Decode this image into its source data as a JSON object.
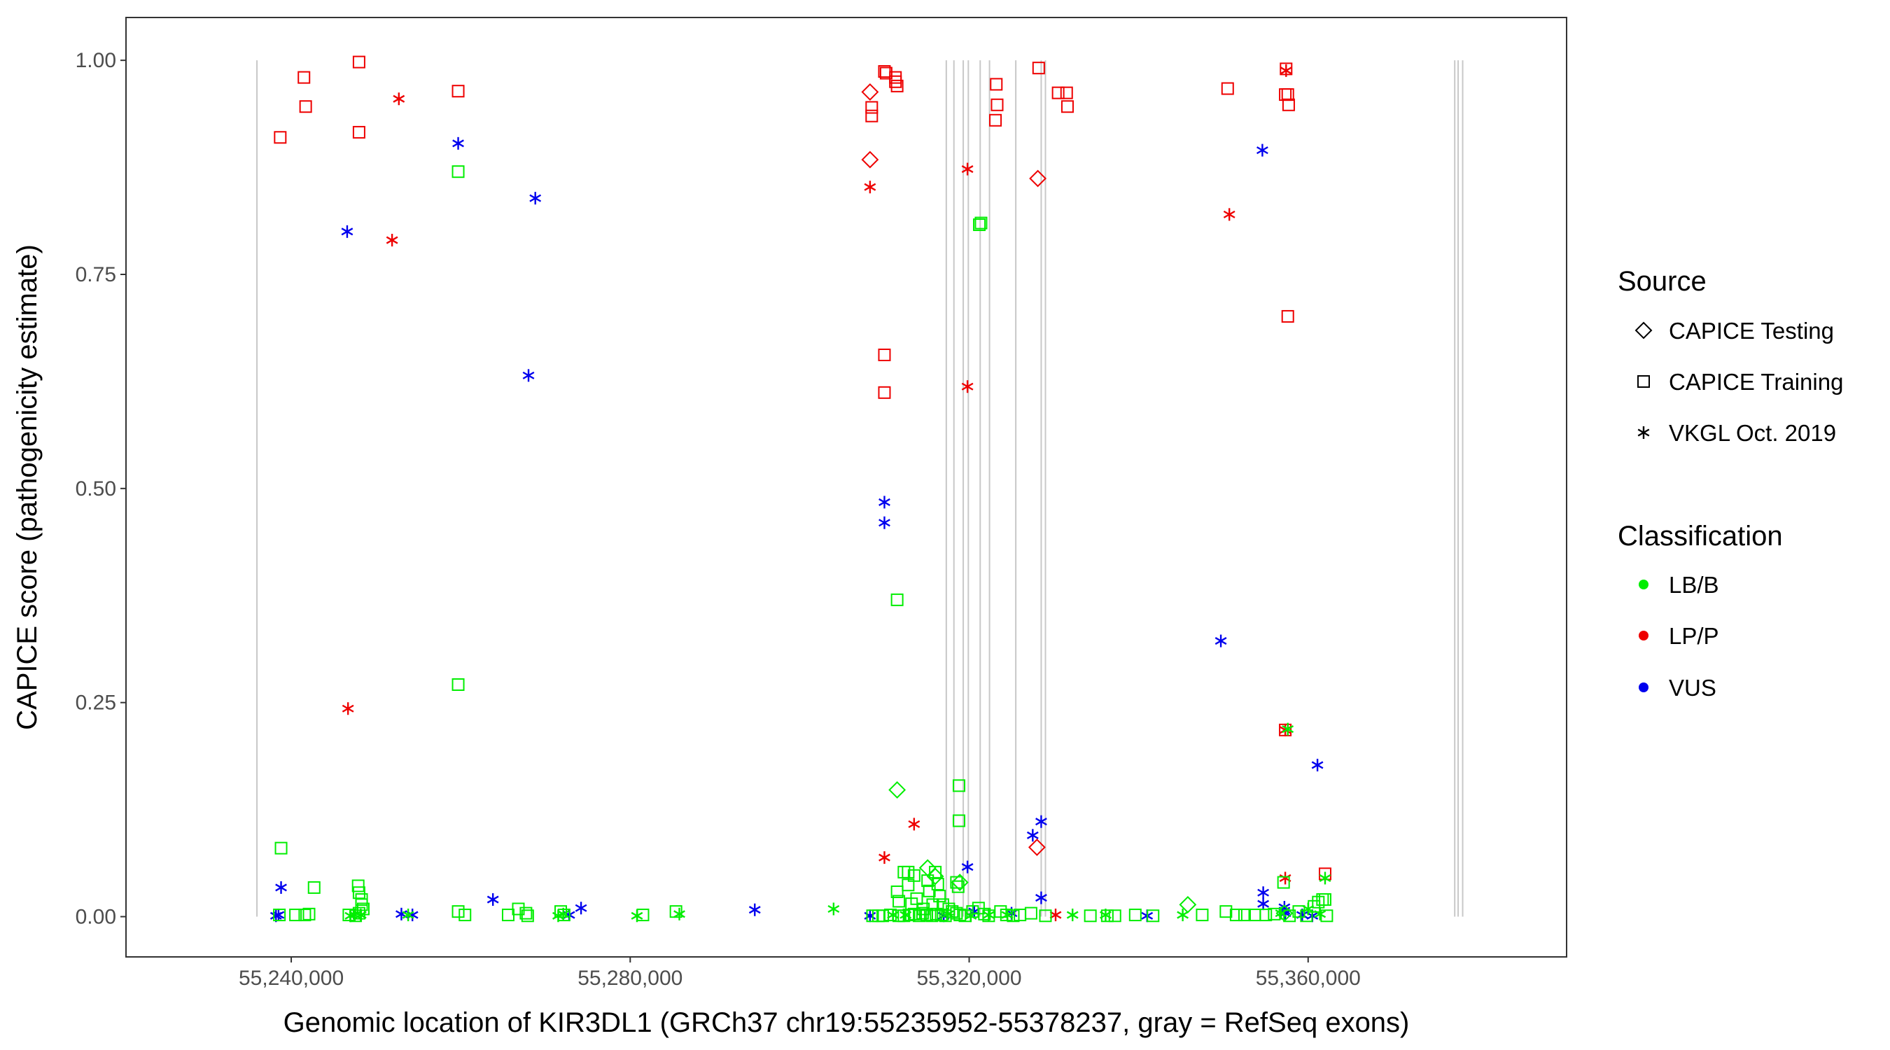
{
  "chart_data": {
    "type": "scatter",
    "xlabel": "Genomic location of KIR3DL1 (GRCh37 chr19:55235952-55378237, gray = RefSeq exons)",
    "ylabel": "CAPICE score (pathogenicity estimate)",
    "xlim": [
      55220500,
      55390500
    ],
    "ylim": [
      -0.047,
      1.05
    ],
    "x_ticks": [
      55240000,
      55280000,
      55320000,
      55360000
    ],
    "x_tick_labels": [
      "55,240,000",
      "55,280,000",
      "55,320,000",
      "55,360,000"
    ],
    "y_ticks": [
      0,
      0.25,
      0.5,
      0.75,
      1
    ],
    "y_tick_labels": [
      "0.00",
      "0.25",
      "0.50",
      "0.75",
      "1.00"
    ],
    "grid": false,
    "exon_lines_x": [
      55235952,
      55317300,
      55318200,
      55319300,
      55319900,
      55321300,
      55322400,
      55325500,
      55328500,
      55329000,
      55377300,
      55377700,
      55378237
    ],
    "legend": {
      "position": "right",
      "shape_title": "Source",
      "shape_entries": [
        {
          "label": "CAPICE Testing",
          "marker": "diamond"
        },
        {
          "label": "CAPICE Training",
          "marker": "square"
        },
        {
          "label": "VKGL Oct. 2019",
          "marker": "asterisk"
        }
      ],
      "color_title": "Classification",
      "color_entries": [
        {
          "label": "LB/B",
          "color": "#00EE00"
        },
        {
          "label": "LP/P",
          "color": "#EE0000"
        },
        {
          "label": "VUS",
          "color": "#0000EE"
        }
      ]
    },
    "series": [
      {
        "source": "CAPICE Training",
        "classification": "LP/P",
        "marker": "square",
        "color": "#EE0000",
        "points": [
          [
            55238700,
            0.91
          ],
          [
            55241500,
            0.98
          ],
          [
            55241700,
            0.946
          ],
          [
            55248000,
            0.998
          ],
          [
            55248000,
            0.916
          ],
          [
            55259700,
            0.964
          ],
          [
            55308500,
            0.945
          ],
          [
            55308500,
            0.935
          ],
          [
            55310000,
            0.987
          ],
          [
            55310200,
            0.985
          ],
          [
            55311300,
            0.98
          ],
          [
            55311300,
            0.975
          ],
          [
            55311500,
            0.97
          ],
          [
            55310000,
            0.656
          ],
          [
            55310000,
            0.612
          ],
          [
            55323200,
            0.972
          ],
          [
            55323300,
            0.948
          ],
          [
            55323100,
            0.93
          ],
          [
            55328200,
            0.991
          ],
          [
            55330500,
            0.962
          ],
          [
            55331500,
            0.962
          ],
          [
            55331600,
            0.946
          ],
          [
            55350500,
            0.967
          ],
          [
            55357400,
            0.99
          ],
          [
            55357300,
            0.96
          ],
          [
            55357600,
            0.96
          ],
          [
            55357700,
            0.948
          ],
          [
            55357600,
            0.701
          ],
          [
            55357300,
            0.218
          ],
          [
            55362000,
            0.05
          ]
        ]
      },
      {
        "source": "CAPICE Testing",
        "classification": "LP/P",
        "marker": "diamond",
        "color": "#EE0000",
        "points": [
          [
            55308300,
            0.963
          ],
          [
            55308300,
            0.884
          ],
          [
            55328100,
            0.862
          ],
          [
            55328000,
            0.081
          ]
        ]
      },
      {
        "source": "VKGL Oct. 2019",
        "classification": "LP/P",
        "marker": "asterisk",
        "color": "#EE0000",
        "points": [
          [
            55252700,
            0.955
          ],
          [
            55251900,
            0.79
          ],
          [
            55246700,
            0.243
          ],
          [
            55308300,
            0.852
          ],
          [
            55319800,
            0.873
          ],
          [
            55319800,
            0.619
          ],
          [
            55313500,
            0.108
          ],
          [
            55310000,
            0.069
          ],
          [
            55350700,
            0.82
          ],
          [
            55357400,
            0.988
          ],
          [
            55357300,
            0.218
          ],
          [
            55357300,
            0.045
          ],
          [
            55330200,
            0.002
          ]
        ]
      },
      {
        "source": "VKGL Oct. 2019",
        "classification": "VUS",
        "marker": "asterisk",
        "color": "#0000EE",
        "points": [
          [
            55246600,
            0.8
          ],
          [
            55259700,
            0.903
          ],
          [
            55268800,
            0.839
          ],
          [
            55268000,
            0.632
          ],
          [
            55310000,
            0.484
          ],
          [
            55310000,
            0.46
          ],
          [
            55354600,
            0.895
          ],
          [
            55349700,
            0.322
          ],
          [
            55361100,
            0.177
          ],
          [
            55319800,
            0.058
          ],
          [
            55327500,
            0.095
          ],
          [
            55328500,
            0.111
          ],
          [
            55328500,
            0.022
          ],
          [
            55238800,
            0.034
          ],
          [
            55238500,
            0.002
          ],
          [
            55238200,
            0.001
          ],
          [
            55253000,
            0.003
          ],
          [
            55254300,
            0.002
          ],
          [
            55263800,
            0.02
          ],
          [
            55272800,
            0.002
          ],
          [
            55274200,
            0.01
          ],
          [
            55294700,
            0.008
          ],
          [
            55308300,
            0.001
          ],
          [
            55317000,
            0.001
          ],
          [
            55320600,
            0.006
          ],
          [
            55325000,
            0.004
          ],
          [
            55341000,
            0.001
          ],
          [
            55354700,
            0.028
          ],
          [
            55354700,
            0.015
          ],
          [
            55357200,
            0.011
          ],
          [
            55357200,
            0.007
          ],
          [
            55357300,
            0.004
          ],
          [
            55359300,
            0.002
          ],
          [
            55360500,
            0.001
          ]
        ]
      },
      {
        "source": "CAPICE Training",
        "classification": "LB/B",
        "marker": "square",
        "color": "#00EE00",
        "points": [
          [
            55259700,
            0.87
          ],
          [
            55321400,
            0.81
          ],
          [
            55321200,
            0.808
          ],
          [
            55311500,
            0.37
          ],
          [
            55259700,
            0.271
          ],
          [
            55318800,
            0.153
          ],
          [
            55318800,
            0.112
          ],
          [
            55238800,
            0.08
          ],
          [
            55318500,
            0.04
          ],
          [
            55318700,
            0.035
          ],
          [
            55357100,
            0.04
          ],
          [
            55362000,
            0.02
          ],
          [
            55312800,
            0.052
          ],
          [
            55313500,
            0.048
          ],
          [
            55238600,
            0.002
          ],
          [
            55240500,
            0.002
          ],
          [
            55241600,
            0.002
          ],
          [
            55242100,
            0.003
          ],
          [
            55242700,
            0.034
          ],
          [
            55246800,
            0.002
          ],
          [
            55247600,
            0.001
          ],
          [
            55247900,
            0.036
          ],
          [
            55248000,
            0.028
          ],
          [
            55248300,
            0.02
          ],
          [
            55248300,
            0.014
          ],
          [
            55248500,
            0.009
          ],
          [
            55248000,
            0.004
          ],
          [
            55259700,
            0.006
          ],
          [
            55260500,
            0.002
          ],
          [
            55265600,
            0.002
          ],
          [
            55266800,
            0.009
          ],
          [
            55267700,
            0.004
          ],
          [
            55267900,
            0.001
          ],
          [
            55271800,
            0.006
          ],
          [
            55272200,
            0.002
          ],
          [
            55281500,
            0.002
          ],
          [
            55285400,
            0.006
          ],
          [
            55308600,
            0.001
          ],
          [
            55309300,
            0.001
          ],
          [
            55309800,
            0.001
          ],
          [
            55310700,
            0.002
          ],
          [
            55311700,
            0.001
          ],
          [
            55312300,
            0.001
          ],
          [
            55312900,
            0.002
          ],
          [
            55313500,
            0.003
          ],
          [
            55314100,
            0.001
          ],
          [
            55314500,
            0.004
          ],
          [
            55315000,
            0.002
          ],
          [
            55315600,
            0.001
          ],
          [
            55316100,
            0.003
          ],
          [
            55316700,
            0.002
          ],
          [
            55317200,
            0.001
          ],
          [
            55311500,
            0.029
          ],
          [
            55311700,
            0.018
          ],
          [
            55312300,
            0.052
          ],
          [
            55312800,
            0.037
          ],
          [
            55313200,
            0.015
          ],
          [
            55313800,
            0.021
          ],
          [
            55314600,
            0.009
          ],
          [
            55315100,
            0.042
          ],
          [
            55315300,
            0.03
          ],
          [
            55315700,
            0.014
          ],
          [
            55316000,
            0.052
          ],
          [
            55316300,
            0.038
          ],
          [
            55316500,
            0.024
          ],
          [
            55316900,
            0.014
          ],
          [
            55317600,
            0.009
          ],
          [
            55318000,
            0.006
          ],
          [
            55318500,
            0.004
          ],
          [
            55318900,
            0.002
          ],
          [
            55319500,
            0.001
          ],
          [
            55320400,
            0.006
          ],
          [
            55321100,
            0.01
          ],
          [
            55321800,
            0.003
          ],
          [
            55322300,
            0.001
          ],
          [
            55323700,
            0.006
          ],
          [
            55324400,
            0.002
          ],
          [
            55325200,
            0.001
          ],
          [
            55326000,
            0.002
          ],
          [
            55327300,
            0.004
          ],
          [
            55329000,
            0.001
          ],
          [
            55334300,
            0.001
          ],
          [
            55336300,
            0.001
          ],
          [
            55337200,
            0.001
          ],
          [
            55339600,
            0.002
          ],
          [
            55341700,
            0.001
          ],
          [
            55347500,
            0.002
          ],
          [
            55350300,
            0.006
          ],
          [
            55351500,
            0.002
          ],
          [
            55352500,
            0.002
          ],
          [
            55353700,
            0.002
          ],
          [
            55355000,
            0.002
          ],
          [
            55356000,
            0.003
          ],
          [
            55357800,
            0.001
          ],
          [
            55358900,
            0.006
          ],
          [
            55359800,
            0.001
          ],
          [
            55360700,
            0.012
          ],
          [
            55361200,
            0.017
          ],
          [
            55361700,
            0.02
          ],
          [
            55362200,
            0.001
          ]
        ]
      },
      {
        "source": "CAPICE Testing",
        "classification": "LB/B",
        "marker": "diamond",
        "color": "#00EE00",
        "points": [
          [
            55311500,
            0.148
          ],
          [
            55315100,
            0.057
          ],
          [
            55316000,
            0.047
          ],
          [
            55318900,
            0.04
          ],
          [
            55345800,
            0.014
          ],
          [
            55357200,
            0.004
          ]
        ]
      },
      {
        "source": "VKGL Oct. 2019",
        "classification": "LB/B",
        "marker": "asterisk",
        "color": "#00EE00",
        "points": [
          [
            55247000,
            0.001
          ],
          [
            55247500,
            0.002
          ],
          [
            55248200,
            0.002
          ],
          [
            55253800,
            0.002
          ],
          [
            55271500,
            0.001
          ],
          [
            55272100,
            0.003
          ],
          [
            55280800,
            0.001
          ],
          [
            55285800,
            0.003
          ],
          [
            55304000,
            0.009
          ],
          [
            55311000,
            0.002
          ],
          [
            55312500,
            0.002
          ],
          [
            55317500,
            0.003
          ],
          [
            55320200,
            0.001
          ],
          [
            55322300,
            0.002
          ],
          [
            55324500,
            0.002
          ],
          [
            55332200,
            0.002
          ],
          [
            55336100,
            0.002
          ],
          [
            55345200,
            0.002
          ],
          [
            55356800,
            0.004
          ],
          [
            55357600,
            0.219
          ],
          [
            55360000,
            0.009
          ],
          [
            55361400,
            0.003
          ],
          [
            55362000,
            0.045
          ]
        ]
      }
    ]
  }
}
